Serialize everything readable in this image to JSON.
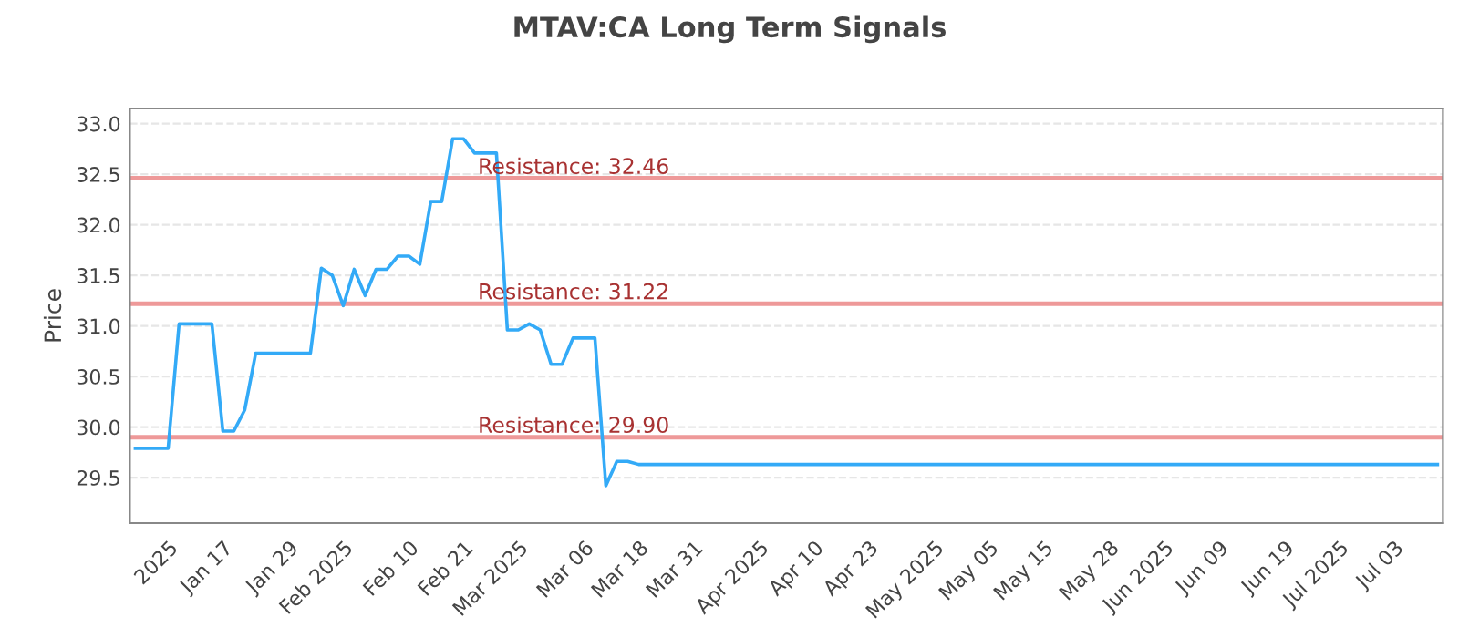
{
  "chart_data": {
    "type": "line",
    "title": "MTAV:CA Long Term Signals",
    "ylabel": "Price",
    "categories": [
      null,
      null,
      null,
      "2025",
      null,
      null,
      null,
      null,
      "Jan 17",
      null,
      null,
      null,
      null,
      null,
      "Jan 29",
      null,
      null,
      null,
      null,
      "Feb 2025",
      null,
      null,
      null,
      null,
      null,
      "Feb 10",
      null,
      null,
      null,
      null,
      "Feb 21",
      null,
      null,
      null,
      null,
      "Mar 2025",
      null,
      null,
      null,
      null,
      null,
      "Mar 06",
      null,
      null,
      null,
      null,
      "Mar 18",
      null,
      null,
      null,
      null,
      "Mar 31",
      null,
      null,
      null,
      null,
      null,
      "Apr 2025",
      null,
      null,
      null,
      null,
      "Apr 10",
      null,
      null,
      null,
      null,
      "Apr 23",
      null,
      null,
      null,
      null,
      null,
      "May 2025",
      null,
      null,
      null,
      null,
      "May 05",
      null,
      null,
      null,
      null,
      "May 15",
      null,
      null,
      null,
      null,
      null,
      "May 28",
      null,
      null,
      null,
      null,
      "Jun 2025",
      null,
      null,
      null,
      null,
      "Jun 09",
      null,
      null,
      null,
      null,
      null,
      "Jun 19",
      null,
      null,
      null,
      null,
      "Jul 2025",
      null,
      null,
      null,
      null,
      "Jul 03",
      null,
      null,
      null,
      null
    ],
    "series": [
      {
        "color": "#33aaf7",
        "values": [
          29.79,
          29.79,
          29.79,
          29.79,
          31.02,
          31.02,
          31.02,
          31.02,
          29.96,
          29.96,
          30.17,
          30.73,
          30.73,
          30.73,
          30.73,
          30.73,
          30.73,
          31.57,
          31.5,
          31.2,
          31.56,
          31.3,
          31.56,
          31.56,
          31.69,
          31.69,
          31.61,
          32.23,
          32.23,
          32.85,
          32.85,
          32.71,
          32.71,
          32.71,
          30.96,
          30.96,
          31.02,
          30.96,
          30.62,
          30.62,
          30.88,
          30.88,
          30.88,
          29.42,
          29.66,
          29.66,
          29.63,
          29.63,
          29.63,
          29.63,
          29.63,
          29.63,
          29.63,
          29.63,
          29.63,
          29.63,
          29.63,
          29.63,
          29.63,
          29.63,
          29.63,
          29.63,
          29.63,
          29.63,
          29.63,
          29.63,
          29.63,
          29.63,
          29.63,
          29.63,
          29.63,
          29.63,
          29.63,
          29.63,
          29.63,
          29.63,
          29.63,
          29.63,
          29.63,
          29.63,
          29.63,
          29.63,
          29.63,
          29.63,
          29.63,
          29.63,
          29.63,
          29.63,
          29.63,
          29.63,
          29.63,
          29.63,
          29.63,
          29.63,
          29.63,
          29.63,
          29.63,
          29.63,
          29.63,
          29.63,
          29.63,
          29.63,
          29.63,
          29.63,
          29.63,
          29.63,
          29.63,
          29.63,
          29.63,
          29.63,
          29.63,
          29.63,
          29.63,
          29.63,
          29.63,
          29.63,
          29.63,
          29.63,
          29.63,
          29.63
        ]
      }
    ],
    "ylim": [
      29.05,
      33.15
    ],
    "yticks": [
      29.5,
      {
        "value": 30,
        "label": "30.0"
      },
      30.5,
      {
        "value": 31,
        "label": "31.0"
      },
      31.5,
      {
        "value": 32,
        "label": "32.0"
      },
      32.5,
      {
        "value": 33,
        "label": "33.0"
      }
    ],
    "ref_lines": [
      {
        "axis": "y",
        "value": 32.46,
        "label": "Resistance: 32.46",
        "color": "#ee9999"
      },
      {
        "axis": "y",
        "value": 31.22,
        "label": "Resistance: 31.22",
        "color": "#ee9999"
      },
      {
        "axis": "y",
        "value": 29.9,
        "label": "Resistance: 29.90",
        "color": "#ee9999"
      }
    ],
    "grid": "y",
    "marker": "none",
    "line_style": "solid"
  }
}
